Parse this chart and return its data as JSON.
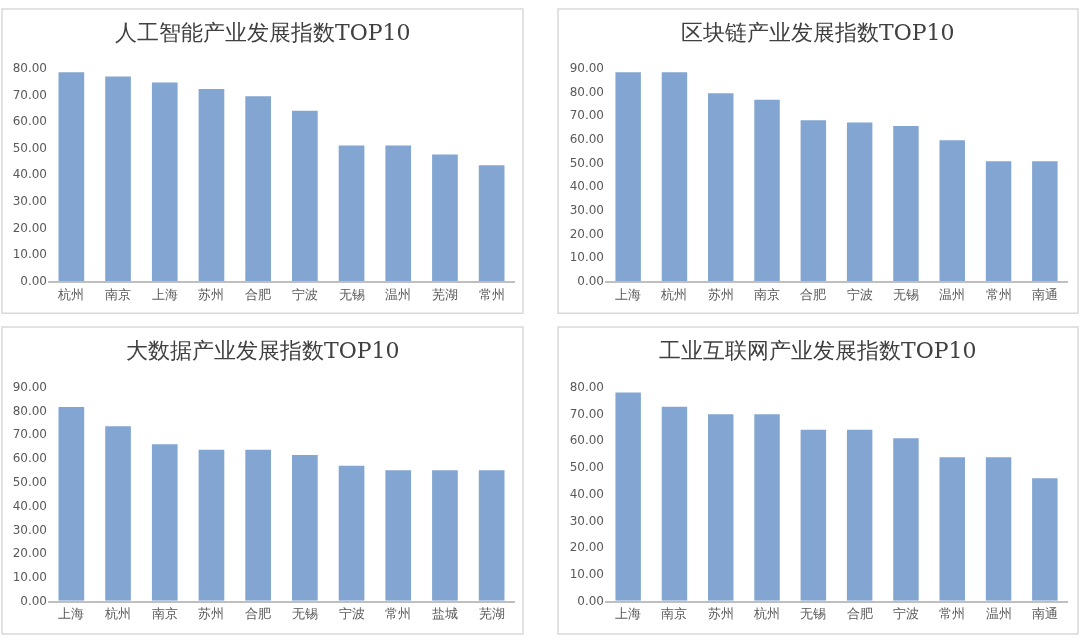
{
  "chart_data": [
    {
      "type": "bar",
      "title": "人工智能产业发展指数TOP10",
      "categories": [
        "杭州",
        "南京",
        "上海",
        "苏州",
        "合肥",
        "宁波",
        "无锡",
        "温州",
        "芜湖",
        "常州"
      ],
      "values": [
        78.3,
        76.7,
        74.4,
        72.0,
        69.3,
        63.8,
        50.8,
        50.8,
        47.4,
        43.4
      ],
      "color": "#82a5d1",
      "ylim": [
        0,
        80
      ],
      "yticks": [
        {
          "value": 0,
          "label": "0.00"
        },
        {
          "value": 10,
          "label": "10.00"
        },
        {
          "value": 20,
          "label": "20.00"
        },
        {
          "value": 30,
          "label": "30.00"
        },
        {
          "value": 40,
          "label": "40.00"
        },
        {
          "value": 50,
          "label": "50.00"
        },
        {
          "value": 60,
          "label": "60.00"
        },
        {
          "value": 70,
          "label": "70.00"
        },
        {
          "value": 80,
          "label": "80.00"
        }
      ],
      "grid": false
    },
    {
      "type": "bar",
      "title": "区块链产业发展指数TOP10",
      "categories": [
        "上海",
        "杭州",
        "苏州",
        "南京",
        "合肥",
        "宁波",
        "无锡",
        "温州",
        "常州",
        "南通"
      ],
      "values": [
        88.1,
        88.1,
        79.2,
        76.5,
        67.8,
        66.9,
        65.4,
        59.4,
        50.5,
        50.5
      ],
      "color": "#82a5d1",
      "ylim": [
        0,
        90
      ],
      "yticks": [
        {
          "value": 0,
          "label": "0.00"
        },
        {
          "value": 10,
          "label": "10.00"
        },
        {
          "value": 20,
          "label": "20.00"
        },
        {
          "value": 30,
          "label": "30.00"
        },
        {
          "value": 40,
          "label": "40.00"
        },
        {
          "value": 50,
          "label": "50.00"
        },
        {
          "value": 60,
          "label": "60.00"
        },
        {
          "value": 70,
          "label": "70.00"
        },
        {
          "value": 80,
          "label": "80.00"
        },
        {
          "value": 90,
          "label": "90.00"
        }
      ],
      "grid": false
    },
    {
      "type": "bar",
      "title": "大数据产业发展指数TOP10",
      "categories": [
        "上海",
        "杭州",
        "南京",
        "苏州",
        "合肥",
        "无锡",
        "宁波",
        "常州",
        "盐城",
        "芜湖"
      ],
      "values": [
        81.4,
        73.3,
        65.8,
        63.5,
        63.5,
        61.2,
        56.7,
        54.8,
        54.8,
        54.8
      ],
      "color": "#82a5d1",
      "ylim": [
        0,
        90
      ],
      "yticks": [
        {
          "value": 0,
          "label": "0.00"
        },
        {
          "value": 10,
          "label": "10.00"
        },
        {
          "value": 20,
          "label": "20.00"
        },
        {
          "value": 30,
          "label": "30.00"
        },
        {
          "value": 40,
          "label": "40.00"
        },
        {
          "value": 50,
          "label": "50.00"
        },
        {
          "value": 60,
          "label": "60.00"
        },
        {
          "value": 70,
          "label": "70.00"
        },
        {
          "value": 80,
          "label": "80.00"
        },
        {
          "value": 90,
          "label": "90.00"
        }
      ],
      "grid": false
    },
    {
      "type": "bar",
      "title": "工业互联网产业发展指数TOP10",
      "categories": [
        "上海",
        "南京",
        "苏州",
        "杭州",
        "无锡",
        "合肥",
        "宁波",
        "常州",
        "温州",
        "南通"
      ],
      "values": [
        77.8,
        72.5,
        69.7,
        69.7,
        63.9,
        63.9,
        60.7,
        53.6,
        53.6,
        45.8
      ],
      "color": "#82a5d1",
      "ylim": [
        0,
        80
      ],
      "yticks": [
        {
          "value": 0,
          "label": "0.00"
        },
        {
          "value": 10,
          "label": "10.00"
        },
        {
          "value": 20,
          "label": "20.00"
        },
        {
          "value": 30,
          "label": "30.00"
        },
        {
          "value": 40,
          "label": "40.00"
        },
        {
          "value": 50,
          "label": "50.00"
        },
        {
          "value": 60,
          "label": "60.00"
        },
        {
          "value": 70,
          "label": "70.00"
        },
        {
          "value": 80,
          "label": "80.00"
        }
      ],
      "grid": false
    }
  ]
}
